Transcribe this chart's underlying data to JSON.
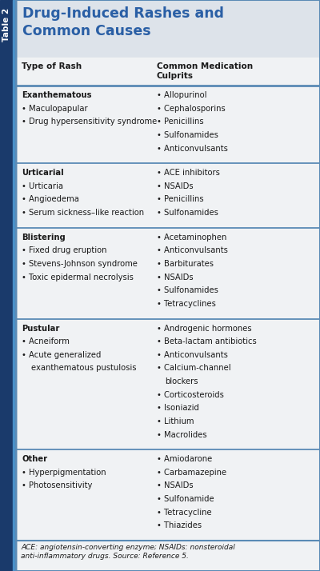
{
  "title": "Drug-Induced Rashes and\nCommon Causes",
  "table_label": "Table 2",
  "col1_header": "Type of Rash",
  "col2_header": "Common Medication\nCulprits",
  "title_bg_color": "#dde3ea",
  "body_bg_color": "#f0f2f4",
  "white": "#ffffff",
  "title_color": "#2a5fa5",
  "border_color": "#5a8ab5",
  "text_color": "#1a1a1a",
  "sidebar_color": "#1a3a6b",
  "sidebar_accent": "#4a90c8",
  "rows": [
    {
      "left": [
        "Exanthematous",
        "• Maculopapular",
        "• Drug hypersensitivity syndrome"
      ],
      "right": [
        "• Allopurinol",
        "• Cephalosporins",
        "• Penicillins",
        "• Sulfonamides",
        "• Anticonvulsants"
      ]
    },
    {
      "left": [
        "Urticarial",
        "• Urticaria",
        "• Angioedema",
        "• Serum sickness–like reaction"
      ],
      "right": [
        "• ACE inhibitors",
        "• NSAIDs",
        "• Penicillins",
        "• Sulfonamides"
      ]
    },
    {
      "left": [
        "Blistering",
        "• Fixed drug eruption",
        "• Stevens-Johnson syndrome",
        "• Toxic epidermal necrolysis"
      ],
      "right": [
        "• Acetaminophen",
        "• Anticonvulsants",
        "• Barbiturates",
        "• NSAIDs",
        "• Sulfonamides",
        "• Tetracyclines"
      ]
    },
    {
      "left": [
        "Pustular",
        "• Acneiform",
        "• Acute generalized",
        "exanthematous pustulosis"
      ],
      "right": [
        "• Androgenic hormones",
        "• Beta-lactam antibiotics",
        "• Anticonvulsants",
        "• Calcium-channel",
        "blockers",
        "• Corticosteroids",
        "• Isoniazid",
        "• Lithium",
        "• Macrolides"
      ]
    },
    {
      "left": [
        "Other",
        "• Hyperpigmentation",
        "• Photosensitivity"
      ],
      "right": [
        "• Amiodarone",
        "• Carbamazepine",
        "• NSAIDs",
        "• Sulfonamide",
        "• Tetracycline",
        "• Thiazides"
      ]
    }
  ],
  "footer": "ACE: angiotensin-converting enzyme; NSAIDs: nonsteroidal\nanti-inflammatory drugs. Source: Reference 5.",
  "figw": 4.0,
  "figh": 7.14,
  "dpi": 100
}
